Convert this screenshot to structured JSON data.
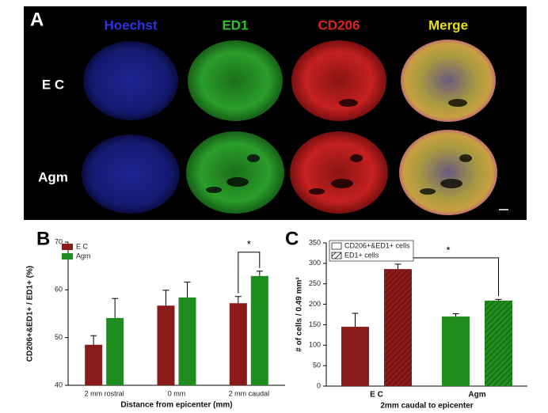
{
  "panel_a": {
    "label": "A",
    "channels": [
      "Hoechst",
      "ED1",
      "CD206",
      "Merge"
    ],
    "channel_colors": [
      "#2a35e0",
      "#28c828",
      "#e02222",
      "#e6e020"
    ],
    "groups": [
      "E C",
      "Agm"
    ]
  },
  "chart_data": [
    {
      "type": "bar",
      "panel_label": "B",
      "xlabel": "Distance from epicenter (mm)",
      "ylabel": "CD206+&ED1+ / ED1+ (%)",
      "categories": [
        "2 mm rostral",
        "0 mm",
        "2 mm caudal"
      ],
      "series": [
        {
          "name": "E C",
          "color": "#8b1a1a",
          "values": [
            48.5,
            56.7,
            57.2
          ],
          "errors": [
            1.9,
            3.2,
            1.4
          ]
        },
        {
          "name": "Agm",
          "color": "#1e8c1e",
          "values": [
            54.1,
            58.4,
            62.9
          ],
          "errors": [
            4.1,
            3.2,
            1.0
          ]
        }
      ],
      "ylim": [
        40,
        70
      ],
      "yticks": [
        40,
        50,
        60,
        70
      ],
      "legend": "upper left",
      "significance": "*"
    },
    {
      "type": "bar",
      "panel_label": "C",
      "xlabel": "2mm caudal to epicenter",
      "ylabel": "# of cells / 0.49 mm²",
      "categories": [
        "E C",
        "Agm"
      ],
      "category_colors": [
        "#8b1a1a",
        "#1e8c1e"
      ],
      "series": [
        {
          "name": "CD206+&ED1+ cells",
          "hatch": false,
          "values": [
            145,
            170
          ],
          "errors": [
            33,
            7
          ]
        },
        {
          "name": "ED1+ cells",
          "hatch": true,
          "values": [
            286,
            209
          ],
          "errors": [
            12,
            3
          ]
        }
      ],
      "ylim": [
        0,
        350
      ],
      "yticks": [
        0,
        50,
        100,
        150,
        200,
        250,
        300,
        350
      ],
      "legend": "upper left",
      "significance": "*"
    }
  ]
}
